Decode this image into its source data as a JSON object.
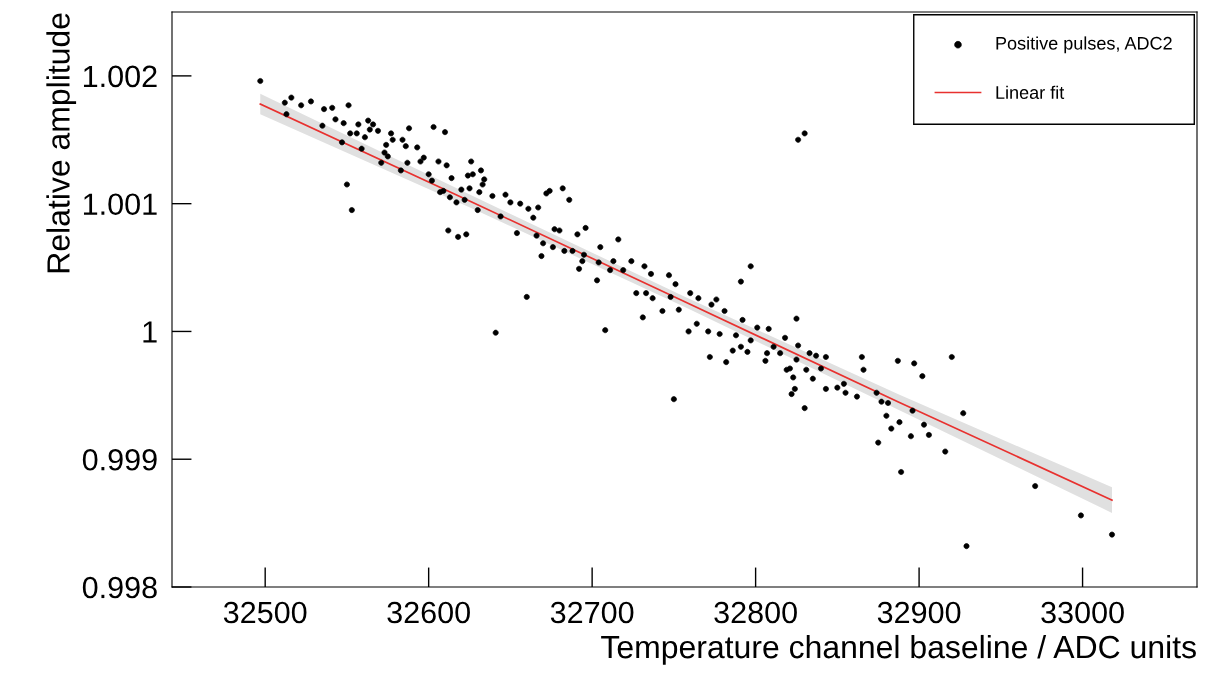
{
  "chart_data": {
    "type": "scatter",
    "xlabel": "Temperature channel baseline / ADC units",
    "ylabel": "Relative amplitude",
    "xlim": [
      32443,
      33070
    ],
    "ylim": [
      0.998,
      1.0025
    ],
    "xticks": [
      32500,
      32600,
      32700,
      32800,
      32900,
      33000
    ],
    "yticks": [
      0.998,
      0.999,
      1,
      1.001,
      1.002
    ],
    "legend": "top right",
    "series": [
      {
        "name": "Positive pulses, ADC2",
        "marker": "circle",
        "color": "#000000",
        "x": [
          32497,
          32512,
          32513,
          32516,
          32522,
          32528,
          32535,
          32536,
          32541,
          32543,
          32547,
          32548,
          32550,
          32551,
          32553,
          32552,
          32556,
          32557,
          32559,
          32561,
          32563,
          32564,
          32566,
          32569,
          32571,
          32574,
          32573,
          32575,
          32577,
          32578,
          32584,
          32583,
          32586,
          32588,
          32587,
          32593,
          32595,
          32597,
          32600,
          32603,
          32602,
          32606,
          32607,
          32610,
          32611,
          32609,
          32612,
          32613,
          32614,
          32617,
          32618,
          32620,
          32623,
          32625,
          32626,
          32627,
          32622,
          32630,
          32632,
          32624,
          32634,
          32633,
          32631,
          32641,
          32639,
          32647,
          32644,
          32650,
          32654,
          32656,
          32660,
          32661,
          32664,
          32667,
          32666,
          32669,
          32670,
          32672,
          32674,
          32676,
          32677,
          32680,
          32682,
          32683,
          32686,
          32688,
          32691,
          32692,
          32694,
          32695,
          32696,
          32703,
          32705,
          32704,
          32708,
          32711,
          32713,
          32716,
          32719,
          32724,
          32727,
          32731,
          32732,
          32733,
          32737,
          32736,
          32743,
          32747,
          32748,
          32751,
          32753,
          32759,
          32760,
          32764,
          32765,
          32771,
          32772,
          32776,
          32750,
          32797,
          32791,
          32773,
          32781,
          32782,
          32778,
          32786,
          32788,
          32792,
          32791,
          32795,
          32797,
          32801,
          32806,
          32808,
          32807,
          32811,
          32815,
          32818,
          32819,
          32821,
          32825,
          32823,
          32824,
          32822,
          32826,
          32825,
          32830,
          32831,
          32833,
          32835,
          32837,
          32840,
          32843,
          32843,
          32850,
          32854,
          32855,
          32862,
          32865,
          32866,
          32874,
          32875,
          32877,
          32881,
          32880,
          32887,
          32888,
          32883,
          32889,
          32896,
          32897,
          32895,
          32902,
          32903,
          32906,
          32916,
          32920,
          32927,
          32929,
          32971,
          32999,
          33018,
          32826,
          32830
        ],
        "values": [
          1.00196,
          1.00179,
          1.0017,
          1.00183,
          1.00177,
          1.0018,
          1.00161,
          1.00174,
          1.00175,
          1.00166,
          1.00148,
          1.00163,
          1.00115,
          1.00177,
          1.00095,
          1.00155,
          1.00155,
          1.00162,
          1.00143,
          1.00152,
          1.00165,
          1.00158,
          1.00162,
          1.00157,
          1.00132,
          1.00146,
          1.0014,
          1.00137,
          1.00155,
          1.0015,
          1.0015,
          1.00126,
          1.00145,
          1.00159,
          1.00132,
          1.00144,
          1.00133,
          1.00136,
          1.00123,
          1.0016,
          1.00118,
          1.00133,
          1.00109,
          1.00156,
          1.0013,
          1.0011,
          1.00079,
          1.00105,
          1.0012,
          1.00101,
          1.00074,
          1.00111,
          1.00076,
          1.00112,
          1.00133,
          1.00123,
          1.00103,
          1.00095,
          1.00126,
          1.00122,
          1.00119,
          1.00115,
          1.00109,
          0.99999,
          1.00106,
          1.00107,
          1.0009,
          1.00101,
          1.00077,
          1.001,
          1.00027,
          1.00096,
          1.00089,
          1.00097,
          1.00075,
          1.00059,
          1.00069,
          1.00108,
          1.0011,
          1.00066,
          1.0008,
          1.00079,
          1.00112,
          1.00063,
          1.00103,
          1.00063,
          1.00076,
          1.00049,
          1.00055,
          1.0006,
          1.00081,
          1.0004,
          1.00066,
          1.00054,
          1.00001,
          1.00048,
          1.00055,
          1.00072,
          1.00048,
          1.00055,
          1.0003,
          1.00011,
          1.00051,
          1.0003,
          1.00026,
          1.00045,
          1.00016,
          1.00044,
          1.00027,
          1.00037,
          1.00017,
          1.0,
          1.0003,
          1.00006,
          1.00026,
          1.0,
          0.9998,
          1.00025,
          0.99947,
          1.00051,
          1.00039,
          1.00021,
          1.00016,
          0.99976,
          0.99998,
          0.99985,
          0.99997,
          1.00009,
          0.99988,
          0.99984,
          0.99993,
          1.00003,
          0.99977,
          1.00002,
          0.99983,
          0.99988,
          0.99983,
          0.99995,
          0.9997,
          0.99971,
          1.0001,
          0.99964,
          0.99955,
          0.99951,
          0.99989,
          0.99978,
          0.9994,
          0.9997,
          0.99983,
          0.99963,
          0.99981,
          0.99971,
          0.9998,
          0.99955,
          0.99956,
          0.99959,
          0.99952,
          0.99949,
          0.9998,
          0.9997,
          0.99952,
          0.99913,
          0.99945,
          0.99944,
          0.99934,
          0.99977,
          0.99929,
          0.99924,
          0.9989,
          0.99938,
          0.99975,
          0.99918,
          0.99965,
          0.99927,
          0.99919,
          0.99906,
          0.9998,
          0.99936,
          0.99832,
          0.99879,
          0.99856,
          0.99841,
          1.0015,
          1.00155
        ]
      },
      {
        "name": "Linear fit",
        "type": "line",
        "color": "#e8312f",
        "x": [
          32497,
          32627,
          32757,
          32887,
          33018
        ],
        "values": [
          1.00178,
          1.00101,
          1.00023,
          0.99945,
          0.99868
        ],
        "lower": [
          1.0017,
          1.00096,
          1.00019,
          0.99939,
          0.99858
        ],
        "upper": [
          1.00186,
          1.00106,
          1.00027,
          0.99951,
          0.99878
        ]
      }
    ]
  }
}
